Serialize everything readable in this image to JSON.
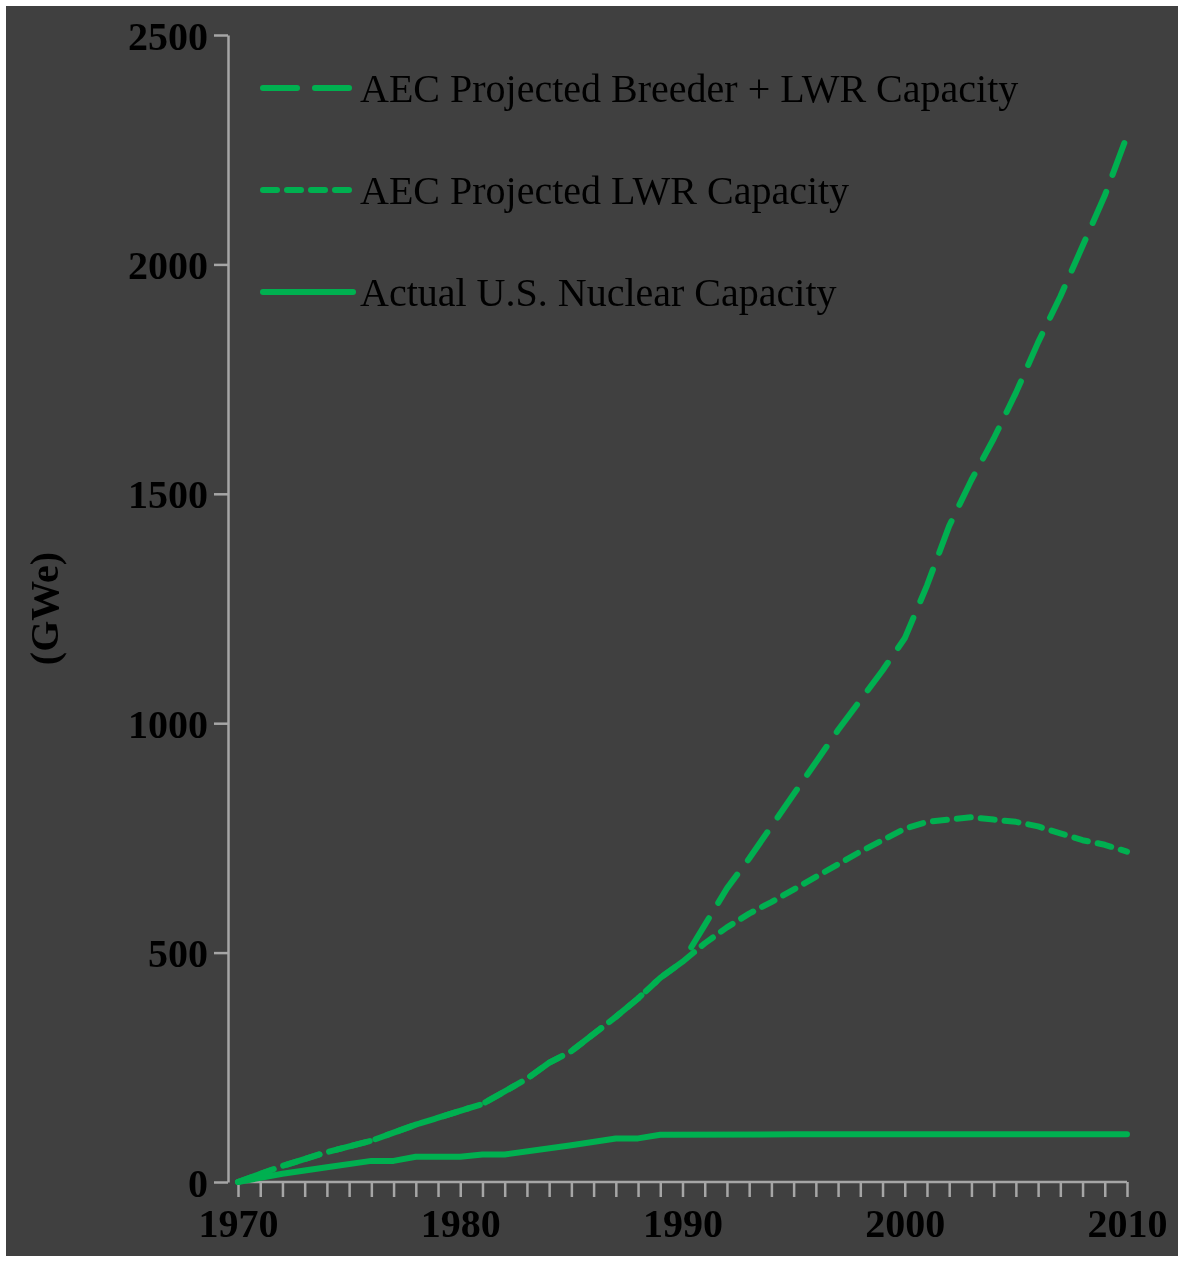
{
  "chart_data": {
    "type": "line",
    "ylabel": "(GWe)",
    "xlim": [
      1970,
      2010
    ],
    "ylim": [
      0,
      2500
    ],
    "xticks": [
      1970,
      {
        "value": 1971,
        "label": null
      },
      {
        "value": 1972,
        "label": null
      },
      {
        "value": 1973,
        "label": null
      },
      {
        "value": 1974,
        "label": null
      },
      {
        "value": 1975,
        "label": null
      },
      {
        "value": 1976,
        "label": null
      },
      {
        "value": 1977,
        "label": null
      },
      {
        "value": 1978,
        "label": null
      },
      {
        "value": 1979,
        "label": null
      },
      1980,
      {
        "value": 1981,
        "label": null
      },
      {
        "value": 1982,
        "label": null
      },
      {
        "value": 1983,
        "label": null
      },
      {
        "value": 1984,
        "label": null
      },
      {
        "value": 1985,
        "label": null
      },
      {
        "value": 1986,
        "label": null
      },
      {
        "value": 1987,
        "label": null
      },
      {
        "value": 1988,
        "label": null
      },
      {
        "value": 1989,
        "label": null
      },
      1990,
      {
        "value": 1991,
        "label": null
      },
      {
        "value": 1992,
        "label": null
      },
      {
        "value": 1993,
        "label": null
      },
      {
        "value": 1994,
        "label": null
      },
      {
        "value": 1995,
        "label": null
      },
      {
        "value": 1996,
        "label": null
      },
      {
        "value": 1997,
        "label": null
      },
      {
        "value": 1998,
        "label": null
      },
      {
        "value": 1999,
        "label": null
      },
      2000,
      {
        "value": 2001,
        "label": null
      },
      {
        "value": 2002,
        "label": null
      },
      {
        "value": 2003,
        "label": null
      },
      {
        "value": 2004,
        "label": null
      },
      {
        "value": 2005,
        "label": null
      },
      {
        "value": 2006,
        "label": null
      },
      {
        "value": 2007,
        "label": null
      },
      {
        "value": 2008,
        "label": null
      },
      {
        "value": 2009,
        "label": null
      },
      2010
    ],
    "yticks": [
      0,
      500,
      1000,
      1500,
      2000,
      2500
    ],
    "grid": false,
    "legend": "top right",
    "marker": "none",
    "series": [
      {
        "name": "AEC Projected Breeder + LWR Capacity",
        "color": "#00b050",
        "line_style": "dashed",
        "x": [
          1970,
          1972,
          1974,
          1976,
          1978,
          1980,
          1981,
          1983,
          1984,
          1985,
          1987,
          1988,
          1989,
          1990,
          1991,
          1992,
          1993,
          1994,
          1995,
          1996,
          1997,
          1998,
          1999,
          2000,
          2001,
          2002,
          2003,
          2004,
          2005,
          2006,
          2007,
          2008,
          2009,
          2010
        ],
        "values": [
          0,
          35,
          65,
          90,
          125,
          155,
          170,
          225,
          260,
          285,
          360,
          400,
          445,
          480,
          560,
          640,
          705,
          775,
          845,
          915,
          985,
          1050,
          1115,
          1185,
          1300,
          1430,
          1530,
          1620,
          1720,
          1830,
          1930,
          2040,
          2150,
          2280
        ]
      },
      {
        "name": "AEC Projected LWR Capacity",
        "color": "#00b050",
        "line_style": "dotted",
        "x": [
          1970,
          1972,
          1974,
          1976,
          1978,
          1980,
          1981,
          1983,
          1984,
          1985,
          1987,
          1988,
          1989,
          1990,
          1991,
          1992,
          1993,
          1994,
          1996,
          1998,
          2000,
          2001,
          2002,
          2003,
          2004,
          2005,
          2006,
          2007,
          2008,
          2009,
          2010
        ],
        "values": [
          0,
          35,
          65,
          90,
          125,
          155,
          170,
          225,
          260,
          285,
          360,
          400,
          445,
          480,
          520,
          555,
          585,
          610,
          665,
          720,
          770,
          785,
          790,
          795,
          790,
          785,
          775,
          760,
          745,
          735,
          720
        ]
      },
      {
        "name": "Actual U.S. Nuclear Capacity",
        "color": "#00b050",
        "line_style": "solid",
        "x": [
          1970,
          1972,
          1974,
          1976,
          1977,
          1978,
          1980,
          1981,
          1982,
          1985,
          1987,
          1988,
          1989,
          1995,
          2000,
          2005,
          2010
        ],
        "values": [
          0,
          18,
          32,
          46,
          46,
          55,
          55,
          60,
          60,
          80,
          95,
          95,
          103,
          104,
          104,
          104,
          104
        ]
      }
    ]
  }
}
